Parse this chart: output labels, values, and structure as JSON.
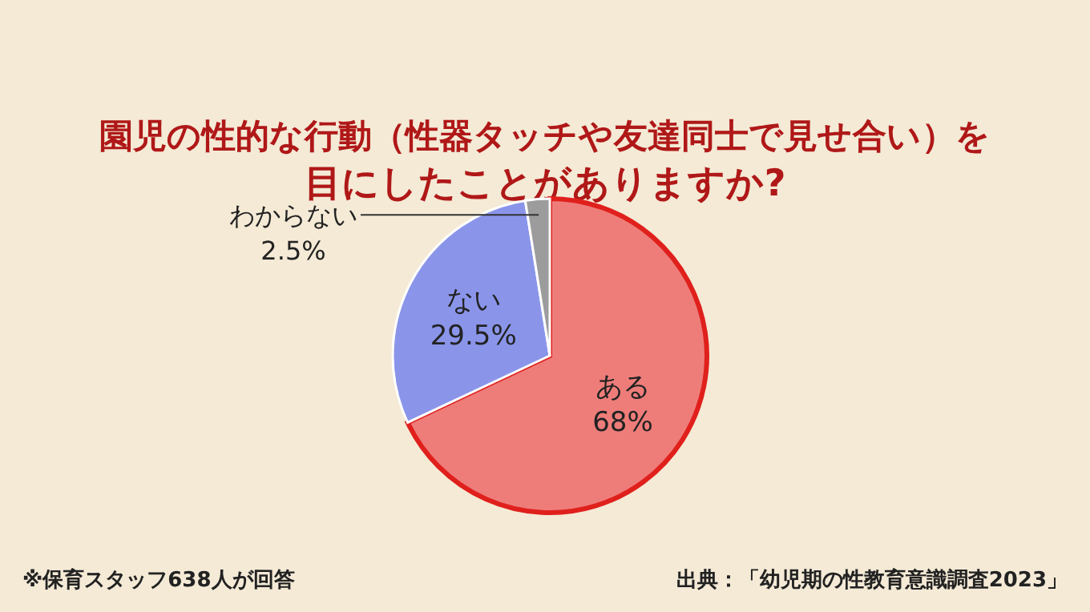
{
  "chart_data": {
    "type": "pie",
    "title": "園児の性的な行動（性器タッチや友達同士で見せ合い）を",
    "subtitle": "目にしたことがありますか?",
    "categories": [
      "ある",
      "ない",
      "わからない"
    ],
    "values": [
      68,
      29.5,
      2.5
    ],
    "value_labels": [
      "68%",
      "29.5%",
      "2.5%"
    ],
    "colors": [
      "#ee7d7a",
      "#8a95ea",
      "#9c9c9c"
    ],
    "annotations": [
      "※保育スタッフ638人が回答",
      "出典：「幼児期の性教育意識調査2023」"
    ]
  }
}
